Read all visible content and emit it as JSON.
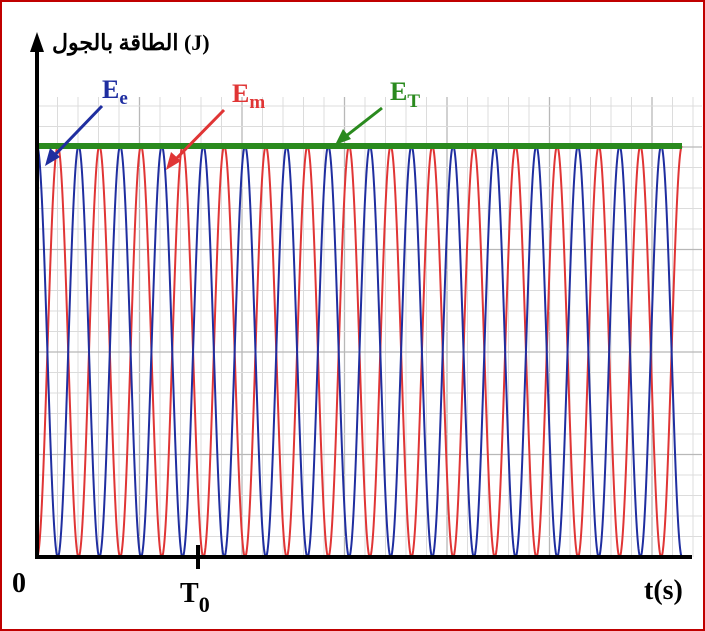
{
  "chart_data": {
    "type": "line",
    "ylabel": "الطاقة بالجول (J)",
    "xlabel": "t(s)",
    "origin_label": "0",
    "period_label": {
      "base": "T",
      "sub": "0"
    },
    "x_range": [
      0,
      7.75
    ],
    "y_range": [
      0,
      1
    ],
    "grid": true,
    "series": [
      {
        "name": "Ee",
        "name_base": "E",
        "name_sub": "e",
        "color": "#1f2ea0",
        "formula": "cos^2(2*pi*t/T0)",
        "peak_value": 1,
        "min_value": 0
      },
      {
        "name": "Em",
        "name_base": "E",
        "name_sub": "m",
        "color": "#e03535",
        "formula": "sin^2(2*pi*t/T0)",
        "peak_value": 1,
        "min_value": 0
      },
      {
        "name": "ET",
        "name_base": "E",
        "name_sub": "T",
        "color": "#2a8a1e",
        "formula": "constant",
        "value": 1
      }
    ],
    "period_T0": 1,
    "oscillations_shown": 15.5
  },
  "colors": {
    "frame": "#c00000",
    "axis": "#000000",
    "grid_major": "#b8b8b8",
    "grid_minor": "#dcdcdc"
  }
}
